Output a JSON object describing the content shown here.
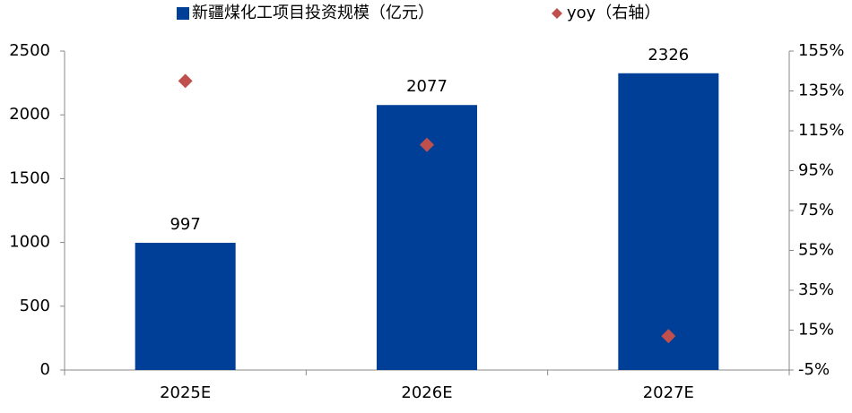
{
  "chart_data": {
    "type": "bar",
    "categories": [
      "2025E",
      "2026E",
      "2027E"
    ],
    "series": [
      {
        "name": "新疆煤化工项目投资规模（亿元）",
        "type": "bar",
        "color": "#003f98",
        "values": [
          997,
          2077,
          2326
        ],
        "data_labels": true
      },
      {
        "name": "yoy（右轴）",
        "type": "scatter",
        "marker": "diamond",
        "color": "#c0504d",
        "axis": "y2",
        "values": [
          140,
          108,
          12
        ]
      }
    ],
    "ylim": [
      0,
      2500
    ],
    "yticks": [
      0,
      500,
      1000,
      1500,
      2000,
      2500
    ],
    "y2lim": [
      -5,
      155
    ],
    "y2ticks": [
      {
        "value": -5,
        "label": "-5%"
      },
      {
        "value": 15,
        "label": "15%"
      },
      {
        "value": 35,
        "label": "35%"
      },
      {
        "value": 55,
        "label": "55%"
      },
      {
        "value": 75,
        "label": "75%"
      },
      {
        "value": 95,
        "label": "95%"
      },
      {
        "value": 115,
        "label": "115%"
      },
      {
        "value": 135,
        "label": "135%"
      },
      {
        "value": 155,
        "label": "155%"
      }
    ],
    "grid": false,
    "legend": "top"
  }
}
